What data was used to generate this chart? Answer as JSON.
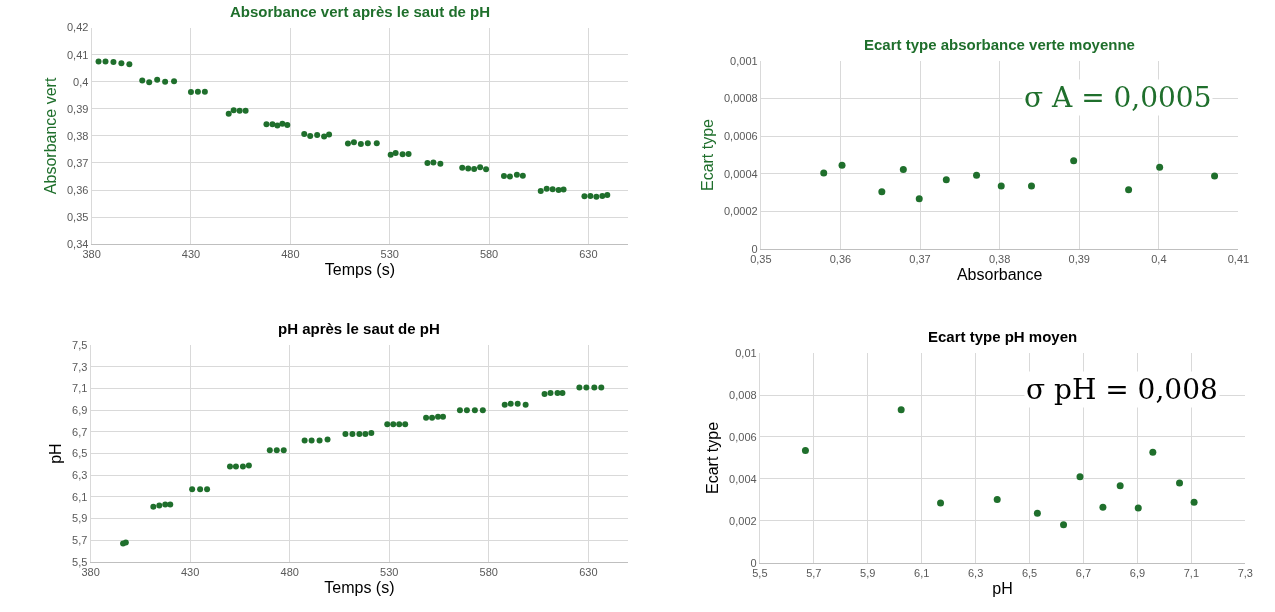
{
  "chart_data": [
    {
      "type": "scatter",
      "title": "Absorbance vert après le saut de pH",
      "xlabel": "Temps (s)",
      "ylabel": "Absorbance vert",
      "color": "#1f6f2c",
      "marker": "circle",
      "grid": true,
      "x": [
        383.5,
        387,
        391,
        395,
        399,
        405.5,
        409,
        413,
        417,
        421.5,
        430,
        433.5,
        437,
        449,
        451.5,
        454.5,
        457.5,
        468,
        471,
        473.5,
        476,
        478.5,
        487,
        490,
        493.5,
        497,
        499.5,
        509,
        512,
        515.5,
        519,
        523.5,
        530.5,
        533,
        536.5,
        539.5,
        549,
        552,
        555.5,
        566.5,
        569.5,
        572.5,
        575.5,
        578.5,
        587.5,
        590.5,
        594,
        597,
        606,
        609,
        612,
        615,
        617.5,
        628,
        631,
        634,
        637,
        639.5
      ],
      "values": [
        0.4075,
        0.4075,
        0.4073,
        0.4068,
        0.4065,
        0.4005,
        0.3998,
        0.4007,
        0.4,
        0.4002,
        0.3962,
        0.3963,
        0.3963,
        0.3882,
        0.3895,
        0.3893,
        0.3893,
        0.3843,
        0.3843,
        0.3838,
        0.3845,
        0.384,
        0.3807,
        0.38,
        0.3803,
        0.3798,
        0.3805,
        0.3772,
        0.3777,
        0.377,
        0.3773,
        0.3773,
        0.373,
        0.3737,
        0.3732,
        0.3733,
        0.37,
        0.3702,
        0.3697,
        0.3682,
        0.368,
        0.3678,
        0.3684,
        0.3677,
        0.3652,
        0.365,
        0.3657,
        0.3653,
        0.3597,
        0.3605,
        0.3603,
        0.36,
        0.3602,
        0.3577,
        0.3578,
        0.3575,
        0.3578,
        0.3582
      ],
      "xlim": [
        380,
        650
      ],
      "xticks": [
        380,
        430,
        480,
        530,
        580,
        630
      ],
      "ylim": [
        0.34,
        0.42
      ],
      "yticks": [
        {
          "value": 0.34,
          "label": "0,34"
        },
        {
          "value": 0.35,
          "label": "0,35"
        },
        {
          "value": 0.36,
          "label": "0,36"
        },
        {
          "value": 0.37,
          "label": "0,37"
        },
        {
          "value": 0.38,
          "label": "0,38"
        },
        {
          "value": 0.39,
          "label": "0,39"
        },
        {
          "value": 0.4,
          "label": "0,4"
        },
        {
          "value": 0.41,
          "label": "0,41"
        },
        {
          "value": 0.42,
          "label": "0,42"
        }
      ]
    },
    {
      "type": "scatter",
      "title": "Ecart type absorbance verte moyenne",
      "xlabel": "Absorbance",
      "ylabel": "Ecart type",
      "color": "#1f6f2c",
      "marker": "circle",
      "grid": true,
      "x": [
        0.3579,
        0.3602,
        0.3652,
        0.3679,
        0.3699,
        0.3733,
        0.3771,
        0.3802,
        0.384,
        0.3893,
        0.3962,
        0.4001,
        0.407
      ],
      "values": [
        0.000404,
        0.000446,
        0.000305,
        0.000423,
        0.000268,
        0.000368,
        0.000393,
        0.000335,
        0.000335,
        0.000469,
        0.000316,
        0.000435,
        0.000389
      ],
      "xlim": [
        0.35,
        0.41
      ],
      "xticks": [
        {
          "value": 0.35,
          "label": "0,35"
        },
        {
          "value": 0.36,
          "label": "0,36"
        },
        {
          "value": 0.37,
          "label": "0,37"
        },
        {
          "value": 0.38,
          "label": "0,38"
        },
        {
          "value": 0.39,
          "label": "0,39"
        },
        {
          "value": 0.4,
          "label": "0,4"
        },
        {
          "value": 0.41,
          "label": "0,41"
        }
      ],
      "ylim": [
        0,
        0.001
      ],
      "yticks": [
        0,
        {
          "value": 0.0002,
          "label": "0,0002"
        },
        {
          "value": 0.0004,
          "label": "0,0004"
        },
        {
          "value": 0.0006,
          "label": "0,0006"
        },
        {
          "value": 0.0008,
          "label": "0,0008"
        },
        {
          "value": 0.001,
          "label": "0,001"
        }
      ],
      "annotations": [
        "σ A = 0,0005"
      ]
    },
    {
      "type": "scatter",
      "title": "pH après le saut de pH",
      "xlabel": "Temps (s)",
      "ylabel": "pH",
      "color": "#1f6f2c",
      "marker": "circle",
      "grid": true,
      "x": [
        396.3,
        397.7,
        411.5,
        414.5,
        417.5,
        420,
        431,
        435,
        438.5,
        450,
        453,
        456.5,
        459.5,
        470,
        473.5,
        477,
        487.5,
        491,
        495,
        499,
        508,
        511.5,
        515,
        518,
        521,
        529,
        532,
        535,
        538,
        548.5,
        551.5,
        554.5,
        557,
        565.5,
        569,
        573,
        577,
        588,
        591,
        594.5,
        598.5,
        608,
        611,
        614.5,
        617,
        625.5,
        629,
        633,
        636.5
      ],
      "values": [
        5.67,
        5.68,
        6.01,
        6.02,
        6.03,
        6.03,
        6.17,
        6.17,
        6.17,
        6.38,
        6.38,
        6.38,
        6.39,
        6.53,
        6.53,
        6.53,
        6.62,
        6.62,
        6.62,
        6.63,
        6.68,
        6.68,
        6.68,
        6.68,
        6.69,
        6.77,
        6.77,
        6.77,
        6.77,
        6.83,
        6.83,
        6.84,
        6.84,
        6.9,
        6.9,
        6.9,
        6.9,
        6.95,
        6.96,
        6.96,
        6.95,
        7.05,
        7.06,
        7.06,
        7.06,
        7.11,
        7.11,
        7.11,
        7.11
      ],
      "xlim": [
        380,
        650
      ],
      "xticks": [
        380,
        430,
        480,
        530,
        580,
        630
      ],
      "ylim": [
        5.5,
        7.5
      ],
      "yticks": [
        {
          "value": 5.5,
          "label": "5,5"
        },
        {
          "value": 5.7,
          "label": "5,7"
        },
        {
          "value": 5.9,
          "label": "5,9"
        },
        {
          "value": 6.1,
          "label": "6,1"
        },
        {
          "value": 6.3,
          "label": "6,3"
        },
        {
          "value": 6.5,
          "label": "6,5"
        },
        {
          "value": 6.7,
          "label": "6,7"
        },
        {
          "value": 6.9,
          "label": "6,9"
        },
        {
          "value": 7.1,
          "label": "7,1"
        },
        {
          "value": 7.3,
          "label": "7,3"
        },
        {
          "value": 7.5,
          "label": "7,5"
        }
      ]
    },
    {
      "type": "scatter",
      "title": "Ecart type pH moyen",
      "xlabel": "pH",
      "ylabel": "Ecart type",
      "color": "#1f6f2c",
      "marker": "circle",
      "grid": true,
      "x": [
        5.669,
        6.024,
        6.17,
        6.38,
        6.529,
        6.626,
        6.687,
        6.772,
        6.836,
        6.903,
        6.957,
        7.056,
        7.11
      ],
      "values": [
        0.00535,
        0.0073,
        0.00285,
        0.00302,
        0.00236,
        0.00182,
        0.00411,
        0.00265,
        0.00368,
        0.00261,
        0.00527,
        0.00381,
        0.00289
      ],
      "xlim": [
        5.5,
        7.3
      ],
      "xticks": [
        {
          "value": 5.5,
          "label": "5,5"
        },
        {
          "value": 5.7,
          "label": "5,7"
        },
        {
          "value": 5.9,
          "label": "5,9"
        },
        {
          "value": 6.1,
          "label": "6,1"
        },
        {
          "value": 6.3,
          "label": "6,3"
        },
        {
          "value": 6.5,
          "label": "6,5"
        },
        {
          "value": 6.7,
          "label": "6,7"
        },
        {
          "value": 6.9,
          "label": "6,9"
        },
        {
          "value": 7.1,
          "label": "7,1"
        },
        {
          "value": 7.3,
          "label": "7,3"
        }
      ],
      "ylim": [
        0,
        0.01
      ],
      "yticks": [
        0,
        {
          "value": 0.002,
          "label": "0,002"
        },
        {
          "value": 0.004,
          "label": "0,004"
        },
        {
          "value": 0.006,
          "label": "0,006"
        },
        {
          "value": 0.008,
          "label": "0,008"
        },
        {
          "value": 0.01,
          "label": "0,01"
        }
      ],
      "annotations": [
        "σ pH = 0,008"
      ]
    }
  ]
}
